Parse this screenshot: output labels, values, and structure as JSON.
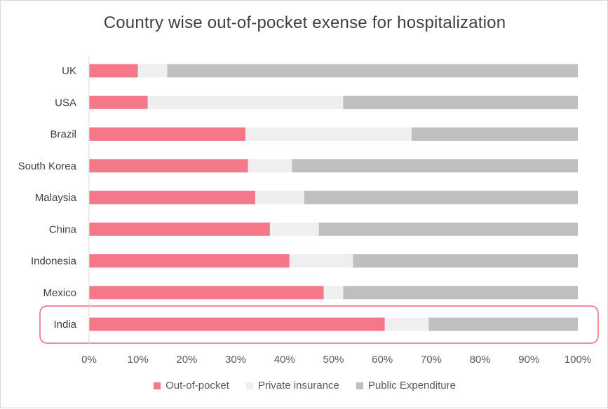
{
  "chart_data": {
    "type": "bar",
    "orientation": "horizontal",
    "stacked": "percent",
    "title": "Country wise out-of-pocket exense for hospitalization",
    "categories": [
      "UK",
      "USA",
      "Brazil",
      "South Korea",
      "Malaysia",
      "China",
      "Indonesia",
      "Mexico",
      "India"
    ],
    "series": [
      {
        "name": "Out-of-pocket",
        "color": "#f4778a",
        "values": [
          10,
          12,
          32,
          32.5,
          34,
          37,
          41,
          48,
          60.5
        ]
      },
      {
        "name": "Private insurance",
        "color": "#efefef",
        "values": [
          6,
          40,
          34,
          9,
          10,
          10,
          13,
          4,
          9
        ]
      },
      {
        "name": "Public Expenditure",
        "color": "#bfbfbf",
        "values": [
          84,
          48,
          34,
          58.5,
          56,
          53,
          46,
          48,
          30.5
        ]
      }
    ],
    "xlim": [
      0,
      100
    ],
    "x_ticks": [
      "0%",
      "10%",
      "20%",
      "30%",
      "40%",
      "50%",
      "60%",
      "70%",
      "80%",
      "90%",
      "100%"
    ],
    "highlight": {
      "category": "India",
      "color": "#e56b7f"
    },
    "legend": "bottom",
    "grid": false
  }
}
